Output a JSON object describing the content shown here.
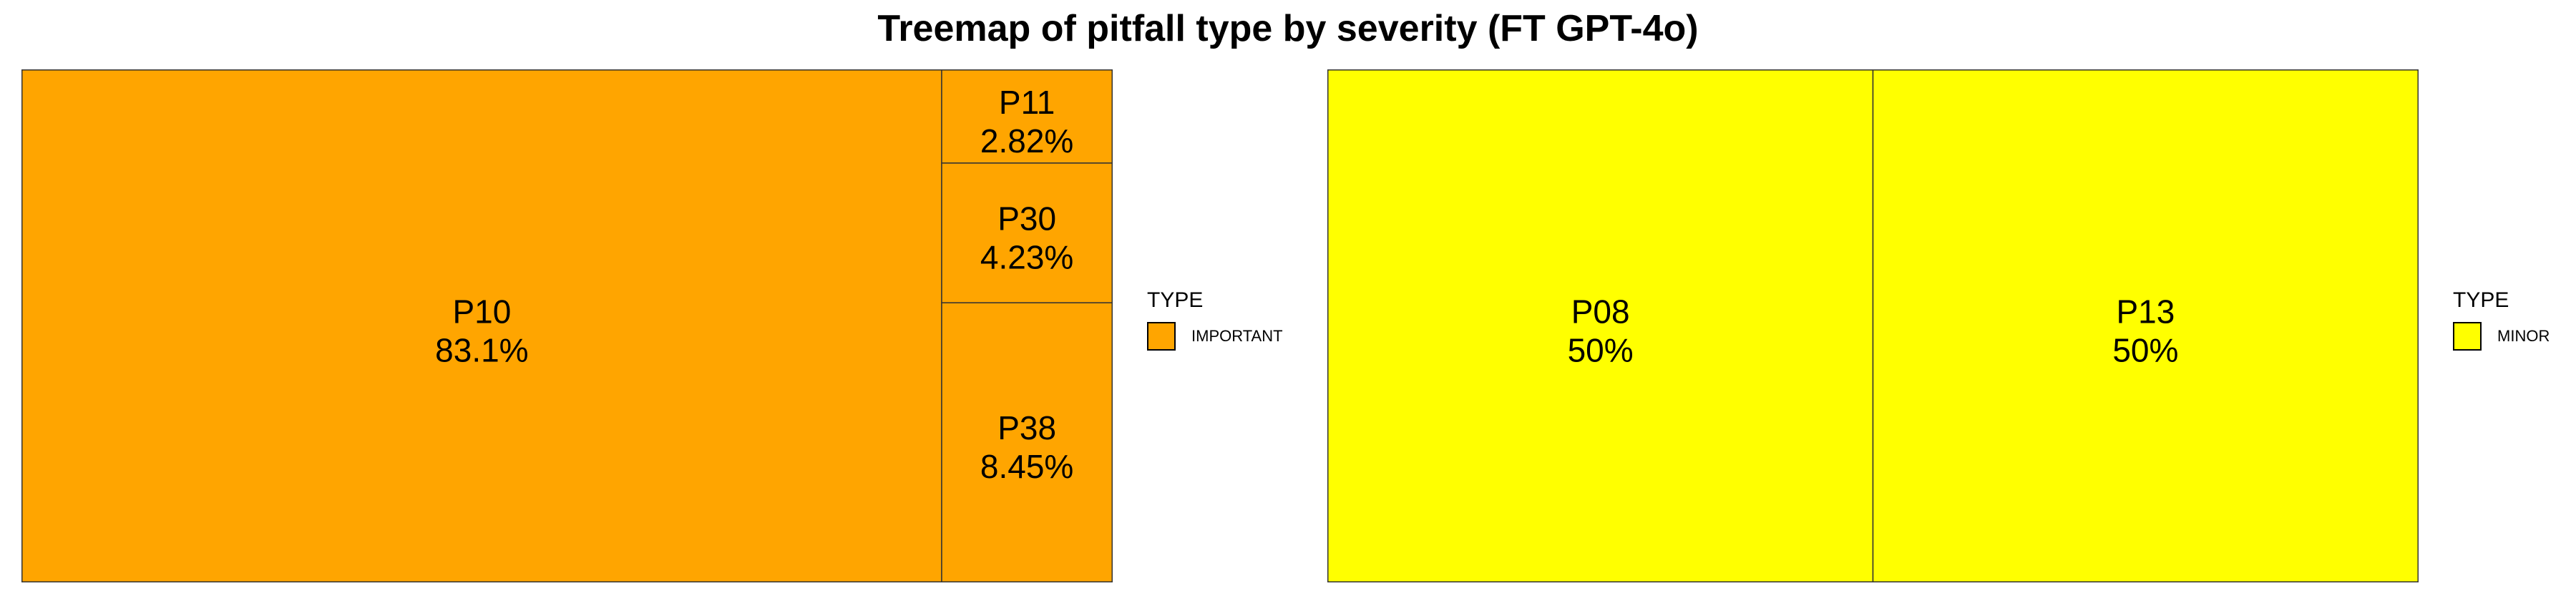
{
  "title": "Treemap of pitfall type by severity (FT GPT-4o)",
  "chart_data": [
    {
      "type": "treemap",
      "legend_title": "TYPE",
      "legend_position": "right",
      "group": "IMPORTANT",
      "color": "#FFA500",
      "items": [
        {
          "name": "P10",
          "percent": 83.1,
          "label": "83.1%"
        },
        {
          "name": "P11",
          "percent": 2.82,
          "label": "2.82%"
        },
        {
          "name": "P30",
          "percent": 4.23,
          "label": "4.23%"
        },
        {
          "name": "P38",
          "percent": 8.45,
          "label": "8.45%"
        }
      ]
    },
    {
      "type": "treemap",
      "legend_title": "TYPE",
      "legend_position": "right",
      "group": "MINOR",
      "color": "#FFFF00",
      "items": [
        {
          "name": "P08",
          "percent": 50,
          "label": "50%"
        },
        {
          "name": "P13",
          "percent": 50,
          "label": "50%"
        }
      ]
    }
  ]
}
